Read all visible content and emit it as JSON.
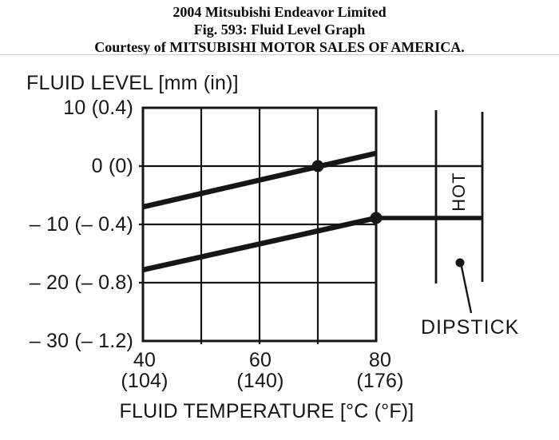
{
  "header": {
    "line1": "2004 Mitsubishi Endeavor Limited",
    "line2": "Fig. 593: Fluid Level Graph",
    "line3": "Courtesy of MITSUBISHI MOTOR SALES OF AMERICA."
  },
  "chart_data": {
    "type": "line",
    "title": "FLUID LEVEL [mm (in)]",
    "xlabel": "FLUID TEMPERATURE [°C (°F)]",
    "xlim": [
      40,
      80
    ],
    "ylim": [
      -30,
      10
    ],
    "grid_step_c": 10,
    "grid_step_mm": 10,
    "grid": "on",
    "x_ticks": [
      {
        "celsius": "40",
        "fahrenheit": "(104)",
        "value": 40
      },
      {
        "celsius": "60",
        "fahrenheit": "(140)",
        "value": 60
      },
      {
        "celsius": "80",
        "fahrenheit": "(176)",
        "value": 80
      }
    ],
    "y_ticks": [
      {
        "label": "10 (0.4)",
        "value": 10
      },
      {
        "label": "0 (0)",
        "value": 0
      },
      {
        "label": "– 10 (– 0.4)",
        "value": -10
      },
      {
        "label": "– 20 (– 0.8)",
        "value": -20
      },
      {
        "label": "– 30 (– 1.2)",
        "value": -30
      }
    ],
    "series": [
      {
        "name": "upper-level-line",
        "points": [
          {
            "c": 40,
            "mm": -7
          },
          {
            "c": 80,
            "mm": 2.2
          }
        ],
        "marker": {
          "c": 70,
          "mm": 0
        }
      },
      {
        "name": "lower-level-line",
        "points": [
          {
            "c": 40,
            "mm": -17.8
          },
          {
            "c": 80,
            "mm": -8.9
          }
        ],
        "marker": {
          "c": 80,
          "mm": -8.9
        }
      }
    ],
    "dipstick": {
      "hot_label": "HOT",
      "label": "DIPSTICK",
      "upper_mark_mm": 0,
      "lower_mark_mm": -8.9
    },
    "ink_color": "#161616"
  }
}
